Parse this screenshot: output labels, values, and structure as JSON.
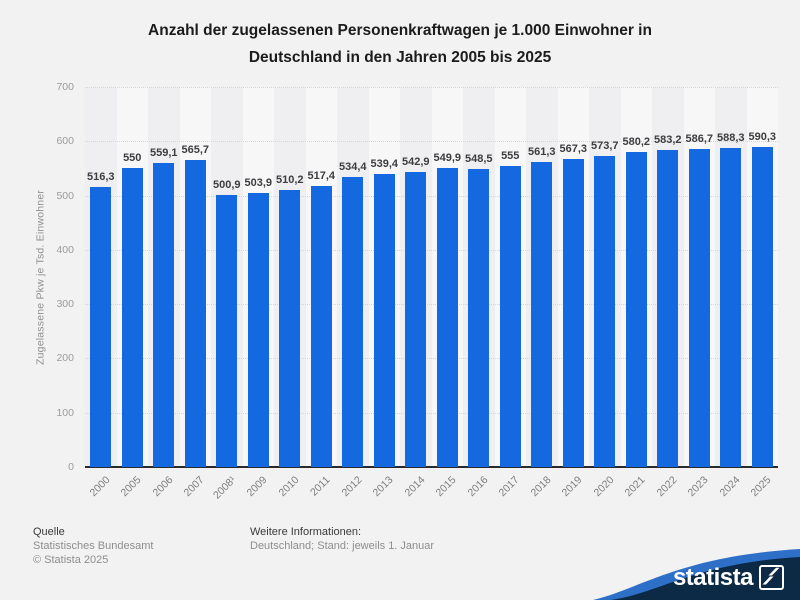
{
  "title": {
    "line1": "Anzahl der zugelassenen Personenkraftwagen je 1.000 Einwohner in",
    "line2": "Deutschland in den Jahren 2005 bis 2025"
  },
  "chart_data": {
    "type": "bar",
    "title": "Anzahl der zugelassenen Personenkraftwagen je 1.000 Einwohner in Deutschland in den Jahren 2005 bis 2025",
    "categories": [
      "2000",
      "2005",
      "2006",
      "2007",
      "2008¹",
      "2009",
      "2010",
      "2011",
      "2012",
      "2013",
      "2014",
      "2015",
      "2016",
      "2017",
      "2018",
      "2019",
      "2020",
      "2021",
      "2022",
      "2023",
      "2024",
      "2025"
    ],
    "values": [
      516.3,
      550,
      559.1,
      565.7,
      500.9,
      503.9,
      510.2,
      517.4,
      534.4,
      539.4,
      542.9,
      549.9,
      548.5,
      555,
      561.3,
      567.3,
      573.7,
      580.2,
      583.2,
      586.7,
      588.3,
      590.3
    ],
    "value_labels": [
      "516,3",
      "550",
      "559,1",
      "565,7",
      "500,9",
      "503,9",
      "510,2",
      "517,4",
      "534,4",
      "539,4",
      "542,9",
      "549,9",
      "548,5",
      "555",
      "561,3",
      "567,3",
      "573,7",
      "580,2",
      "583,2",
      "586,7",
      "588,3",
      "590,3"
    ],
    "xlabel": "",
    "ylabel": "Zugelassene Pkw je Tsd. Einwohner",
    "ylim": [
      0,
      700
    ],
    "yticks": [
      0,
      100,
      200,
      300,
      400,
      500,
      600,
      700
    ],
    "grid": "horizontal-dotted",
    "legend": "none"
  },
  "footer": {
    "source_heading": "Quelle",
    "source": "Statistisches Bundesamt",
    "copyright": "© Statista 2025",
    "info_heading": "Weitere Informationen:",
    "info": "Deutschland; Stand: jeweils 1. Januar"
  },
  "logo": {
    "brand": "statista"
  },
  "colors": {
    "background": "#f2f2f3",
    "bar": "#1569e0",
    "stripe_dark": "#efeff1",
    "stripe_light": "#f7f7f8",
    "baseline": "#2a2a2c",
    "gridline": "#d5d5d7",
    "logo_navy": "#0c2a46",
    "logo_swoosh": "#2e70c8"
  }
}
